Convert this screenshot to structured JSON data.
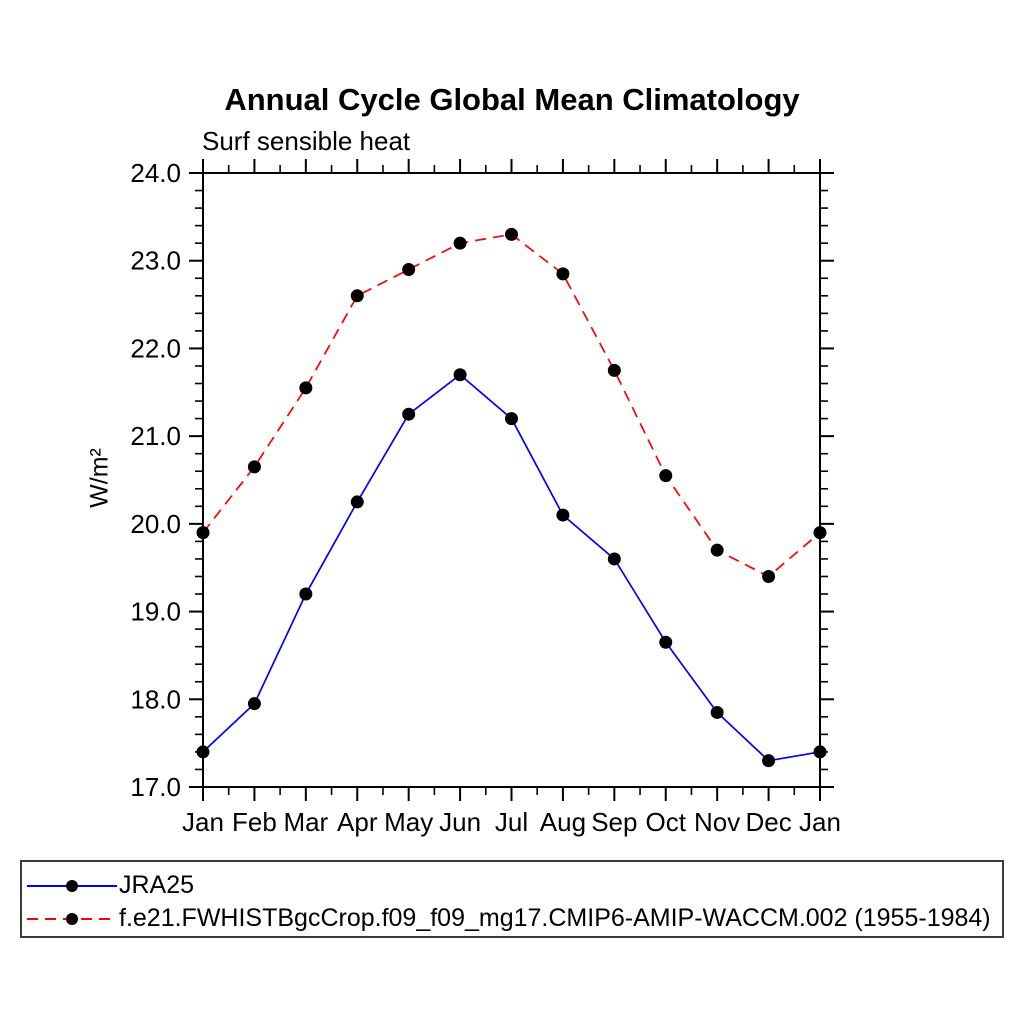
{
  "title": "Annual Cycle Global Mean Climatology",
  "subtitle": "Surf sensible heat",
  "ylabel": "W/m²",
  "colors": {
    "axis": "#000000",
    "series1": "#0000ff",
    "series2": "#ff0000",
    "marker": "#000000",
    "background": "#ffffff"
  },
  "chart_data": {
    "type": "line",
    "title": "Annual Cycle Global Mean Climatology",
    "subtitle": "Surf sensible heat",
    "xlabel": "",
    "ylabel": "W/m²",
    "categories": [
      "Jan",
      "Feb",
      "Mar",
      "Apr",
      "May",
      "Jun",
      "Jul",
      "Aug",
      "Sep",
      "Oct",
      "Nov",
      "Dec",
      "Jan"
    ],
    "series": [
      {
        "name": "JRA25",
        "color": "#0000ff",
        "line_style": "solid",
        "marker": "filled-black-circle",
        "values": [
          17.4,
          17.95,
          19.2,
          20.25,
          21.25,
          21.7,
          21.2,
          20.1,
          19.6,
          18.65,
          17.85,
          17.3,
          17.4
        ]
      },
      {
        "name": "f.e21.FWHISTBgcCrop.f09_f09_mg17.CMIP6-AMIP-WACCM.002 (1955-1984)",
        "color": "#ff0000",
        "line_style": "dashed",
        "marker": "filled-black-circle",
        "values": [
          19.9,
          20.65,
          21.55,
          22.6,
          22.9,
          23.2,
          23.3,
          22.85,
          21.75,
          20.55,
          19.7,
          19.4,
          19.9
        ]
      }
    ],
    "ylim": [
      17.0,
      24.0
    ],
    "ytick_step": 1.0,
    "ytick_minor_step": 0.2,
    "ytick_labels": [
      "17.0",
      "18.0",
      "19.0",
      "20.0",
      "21.0",
      "22.0",
      "23.0",
      "24.0"
    ],
    "xtick_minor": "midpoints-between-months",
    "grid": false,
    "legend_position": "bottom-left-box"
  }
}
